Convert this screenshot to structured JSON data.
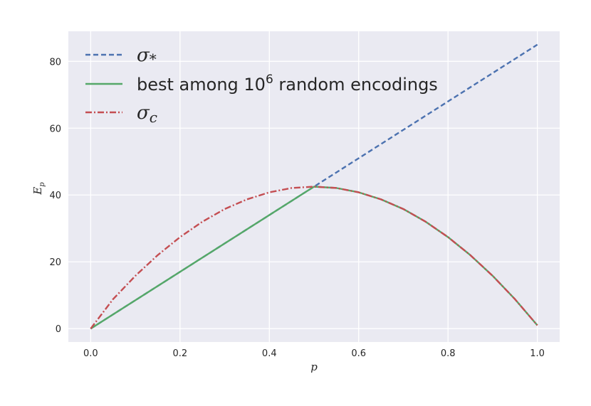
{
  "chart_data": {
    "type": "line",
    "xlabel": "p",
    "ylabel": "E_p",
    "xlim": [
      -0.05,
      1.05
    ],
    "ylim": [
      -4,
      89
    ],
    "xticks": [
      0.0,
      0.2,
      0.4,
      0.6,
      0.8,
      1.0
    ],
    "xtick_labels": [
      "0.0",
      "0.2",
      "0.4",
      "0.6",
      "0.8",
      "1.0"
    ],
    "yticks": [
      0,
      20,
      40,
      60,
      80
    ],
    "ytick_labels": [
      "0",
      "20",
      "40",
      "60",
      "80"
    ],
    "grid": true,
    "legend_position": "top-left",
    "background_color": "#eaeaf2",
    "series": [
      {
        "name": "σ*",
        "color": "#4c72b0",
        "style": "dashed",
        "x": [
          0.0,
          0.5,
          1.0
        ],
        "y": [
          0,
          42.5,
          85
        ]
      },
      {
        "name": "best among 10^6 random encodings",
        "color": "#55a868",
        "style": "solid",
        "x": [
          0.0,
          0.5,
          0.55,
          0.6,
          0.65,
          0.7,
          0.75,
          0.8,
          0.85,
          0.9,
          0.95,
          1.0
        ],
        "y": [
          0,
          42.5,
          42.1,
          40.8,
          38.7,
          35.8,
          32.0,
          27.4,
          22.0,
          15.8,
          8.8,
          1.0
        ]
      },
      {
        "name": "σc",
        "color": "#c44e52",
        "style": "dashdot",
        "x": [
          0.0,
          0.05,
          0.1,
          0.15,
          0.2,
          0.25,
          0.3,
          0.35,
          0.4,
          0.45,
          0.5,
          0.55,
          0.6,
          0.65,
          0.7,
          0.75,
          0.8,
          0.85,
          0.9,
          0.95,
          1.0
        ],
        "y": [
          0,
          8.8,
          15.8,
          22.0,
          27.4,
          32.0,
          35.8,
          38.7,
          40.8,
          42.1,
          42.5,
          42.1,
          40.8,
          38.7,
          35.8,
          32.0,
          27.4,
          22.0,
          15.8,
          8.8,
          1.0
        ]
      }
    ],
    "legend_labels": {
      "sigma_star": {
        "base": "σ",
        "sub": "*"
      },
      "best": {
        "text": "best among 10",
        "sup": "6",
        "rest": " random encodings"
      },
      "sigma_c": {
        "base": "σ",
        "sub": "c"
      }
    }
  }
}
